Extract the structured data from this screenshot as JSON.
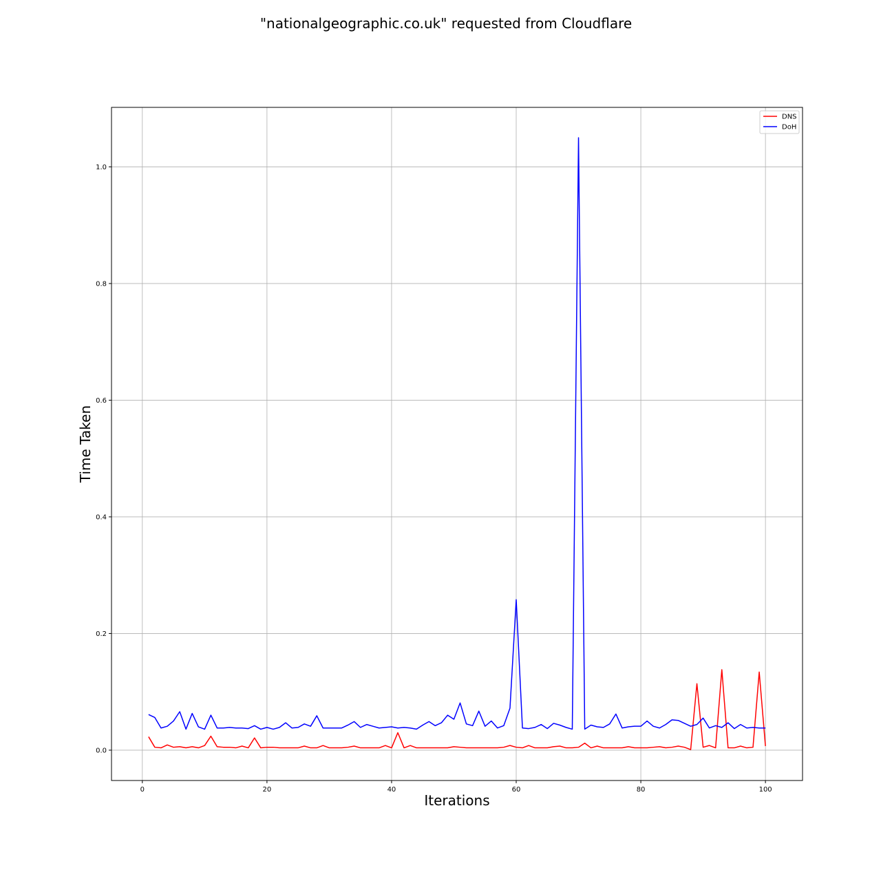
{
  "chart_data": {
    "type": "line",
    "title": "\"nationalgeographic.co.uk\" requested from Cloudflare",
    "xlabel": "Iterations",
    "ylabel": "Time Taken",
    "xlim": [
      -4.95,
      105.95
    ],
    "ylim": [
      -0.052,
      1.102
    ],
    "xticks": [
      0,
      20,
      40,
      60,
      80,
      100
    ],
    "xtick_labels": [
      "0",
      "20",
      "40",
      "60",
      "80",
      "100"
    ],
    "yticks": [
      0.0,
      0.2,
      0.4,
      0.6,
      0.8,
      1.0
    ],
    "ytick_labels": [
      "0.0",
      "0.2",
      "0.4",
      "0.6",
      "0.8",
      "1.0"
    ],
    "grid": true,
    "legend_position": "top-right",
    "x": [
      1,
      2,
      3,
      4,
      5,
      6,
      7,
      8,
      9,
      10,
      11,
      12,
      13,
      14,
      15,
      16,
      17,
      18,
      19,
      20,
      21,
      22,
      23,
      24,
      25,
      26,
      27,
      28,
      29,
      30,
      31,
      32,
      33,
      34,
      35,
      36,
      37,
      38,
      39,
      40,
      41,
      42,
      43,
      44,
      45,
      46,
      47,
      48,
      49,
      50,
      51,
      52,
      53,
      54,
      55,
      56,
      57,
      58,
      59,
      60,
      61,
      62,
      63,
      64,
      65,
      66,
      67,
      68,
      69,
      70,
      71,
      72,
      73,
      74,
      75,
      76,
      77,
      78,
      79,
      80,
      81,
      82,
      83,
      84,
      85,
      86,
      87,
      88,
      89,
      90,
      91,
      92,
      93,
      94,
      95,
      96,
      97,
      98,
      99,
      100
    ],
    "series": [
      {
        "name": "DNS",
        "color": "#ff0000",
        "values": [
          0.023,
          0.005,
          0.004,
          0.009,
          0.005,
          0.006,
          0.004,
          0.006,
          0.004,
          0.008,
          0.024,
          0.006,
          0.005,
          0.005,
          0.004,
          0.007,
          0.004,
          0.021,
          0.004,
          0.005,
          0.005,
          0.004,
          0.004,
          0.004,
          0.004,
          0.007,
          0.004,
          0.004,
          0.008,
          0.004,
          0.004,
          0.004,
          0.005,
          0.007,
          0.004,
          0.004,
          0.004,
          0.004,
          0.008,
          0.004,
          0.03,
          0.004,
          0.008,
          0.004,
          0.004,
          0.004,
          0.004,
          0.004,
          0.004,
          0.006,
          0.005,
          0.004,
          0.004,
          0.004,
          0.004,
          0.004,
          0.004,
          0.005,
          0.008,
          0.005,
          0.004,
          0.008,
          0.004,
          0.004,
          0.004,
          0.006,
          0.007,
          0.004,
          0.004,
          0.005,
          0.012,
          0.004,
          0.007,
          0.004,
          0.004,
          0.004,
          0.004,
          0.006,
          0.004,
          0.004,
          0.004,
          0.005,
          0.006,
          0.004,
          0.005,
          0.007,
          0.005,
          0.001,
          0.114,
          0.005,
          0.008,
          0.004,
          0.138,
          0.004,
          0.004,
          0.007,
          0.004,
          0.005,
          0.134,
          0.007
        ]
      },
      {
        "name": "DoH",
        "color": "#0000ff",
        "values": [
          0.061,
          0.056,
          0.038,
          0.041,
          0.05,
          0.066,
          0.036,
          0.063,
          0.04,
          0.036,
          0.06,
          0.038,
          0.038,
          0.039,
          0.038,
          0.038,
          0.037,
          0.042,
          0.036,
          0.039,
          0.036,
          0.039,
          0.047,
          0.038,
          0.039,
          0.045,
          0.041,
          0.059,
          0.038,
          0.038,
          0.038,
          0.038,
          0.043,
          0.049,
          0.039,
          0.044,
          0.041,
          0.038,
          0.039,
          0.04,
          0.038,
          0.039,
          0.038,
          0.036,
          0.043,
          0.049,
          0.042,
          0.047,
          0.06,
          0.053,
          0.081,
          0.045,
          0.042,
          0.067,
          0.041,
          0.05,
          0.038,
          0.042,
          0.072,
          0.258,
          0.038,
          0.037,
          0.039,
          0.044,
          0.037,
          0.046,
          0.043,
          0.039,
          0.036,
          1.05,
          0.036,
          0.043,
          0.04,
          0.039,
          0.045,
          0.062,
          0.038,
          0.04,
          0.041,
          0.041,
          0.05,
          0.041,
          0.038,
          0.044,
          0.052,
          0.051,
          0.046,
          0.041,
          0.044,
          0.055,
          0.038,
          0.042,
          0.039,
          0.047,
          0.037,
          0.044,
          0.038,
          0.039,
          0.038,
          0.038
        ]
      }
    ]
  }
}
